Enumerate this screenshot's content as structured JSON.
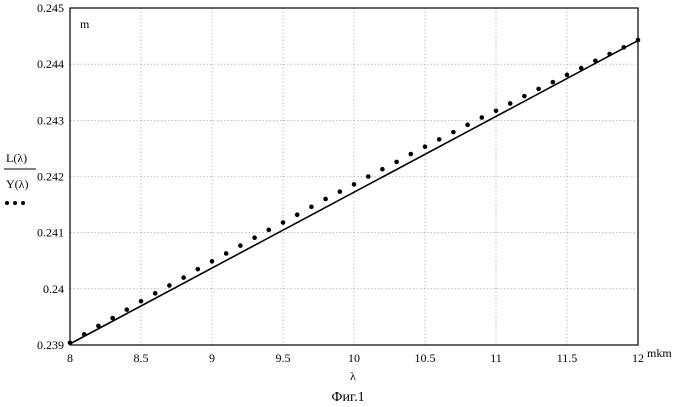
{
  "chart_data": {
    "type": "line",
    "xlim": [
      8,
      12
    ],
    "ylim": [
      0.239,
      0.245
    ],
    "x_ticks": [
      "8",
      "8.5",
      "9",
      "9.5",
      "10",
      "10.5",
      "11",
      "11.5",
      "12"
    ],
    "y_ticks": [
      "0.239",
      "0.24",
      "0.241",
      "0.242",
      "0.243",
      "0.244",
      "0.245"
    ],
    "grid": true,
    "x_unit": "mkm",
    "y_unit": "m",
    "xlabel": "λ",
    "legend_upper": "L(λ)",
    "legend_lower": "Y(λ)",
    "series": [
      {
        "name": "L(λ)",
        "style": "solid",
        "x": [
          8,
          12
        ],
        "y": [
          0.23902,
          0.24442
        ]
      },
      {
        "name": "Y(λ)",
        "style": "dots",
        "x": [
          8.0,
          8.1,
          8.2,
          8.3,
          8.4,
          8.5,
          8.6,
          8.7,
          8.8,
          8.9,
          9.0,
          9.1,
          9.2,
          9.3,
          9.4,
          9.5,
          9.6,
          9.7,
          9.8,
          9.9,
          10.0,
          10.1,
          10.2,
          10.3,
          10.4,
          10.5,
          10.6,
          10.7,
          10.8,
          10.9,
          11.0,
          11.1,
          11.2,
          11.3,
          11.4,
          11.5,
          11.6,
          11.7,
          11.8,
          11.9,
          12.0
        ],
        "y": [
          0.23904,
          0.23919,
          0.23934,
          0.23948,
          0.23963,
          0.23978,
          0.23992,
          0.24006,
          0.2402,
          0.24035,
          0.24049,
          0.24063,
          0.24077,
          0.24091,
          0.24105,
          0.24118,
          0.24132,
          0.24146,
          0.2416,
          0.24173,
          0.24186,
          0.242,
          0.24213,
          0.24226,
          0.2424,
          0.24253,
          0.24266,
          0.24279,
          0.24292,
          0.24305,
          0.24317,
          0.2433,
          0.24343,
          0.24356,
          0.24368,
          0.24381,
          0.24393,
          0.24406,
          0.24418,
          0.2443,
          0.24443
        ]
      }
    ]
  },
  "caption": "Фиг.1"
}
